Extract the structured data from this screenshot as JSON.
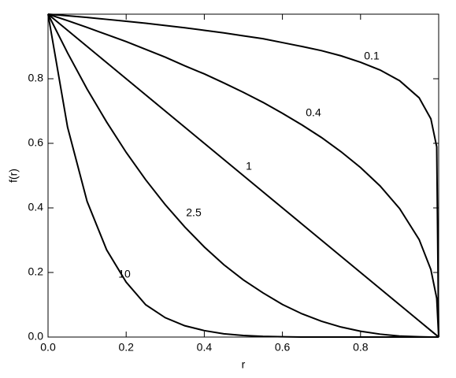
{
  "chart_data": {
    "type": "line",
    "x_label": "r",
    "y_label": "f(r)",
    "x": [
      0,
      0.05,
      0.1,
      0.15,
      0.2,
      0.25,
      0.3,
      0.35,
      0.4,
      0.45,
      0.5,
      0.55,
      0.6,
      0.65,
      0.7,
      0.75,
      0.8,
      0.85,
      0.9,
      0.95,
      0.98,
      0.995,
      1
    ],
    "series": [
      {
        "name": "0.1",
        "color": "#000000",
        "values": [
          1,
          0.995,
          0.99,
          0.984,
          0.978,
          0.972,
          0.965,
          0.958,
          0.95,
          0.942,
          0.933,
          0.924,
          0.912,
          0.9,
          0.887,
          0.871,
          0.851,
          0.827,
          0.794,
          0.741,
          0.676,
          0.589,
          0
        ]
      },
      {
        "name": "0.4",
        "color": "#000000",
        "values": [
          1,
          0.98,
          0.959,
          0.937,
          0.915,
          0.891,
          0.867,
          0.84,
          0.815,
          0.787,
          0.758,
          0.727,
          0.693,
          0.657,
          0.618,
          0.574,
          0.525,
          0.468,
          0.398,
          0.302,
          0.209,
          0.12,
          0
        ]
      },
      {
        "name": "1",
        "color": "#000000",
        "values": [
          1,
          0.95,
          0.9,
          0.85,
          0.8,
          0.75,
          0.7,
          0.65,
          0.6,
          0.55,
          0.5,
          0.45,
          0.4,
          0.35,
          0.3,
          0.25,
          0.2,
          0.15,
          0.1,
          0.05,
          0.02,
          0.005,
          0
        ]
      },
      {
        "name": "2.5",
        "color": "#000000",
        "values": [
          1,
          0.88,
          0.768,
          0.666,
          0.572,
          0.487,
          0.41,
          0.341,
          0.279,
          0.224,
          0.177,
          0.137,
          0.101,
          0.072,
          0.049,
          0.031,
          0.018,
          0.009,
          0.003,
          0.001,
          0,
          0,
          0
        ]
      },
      {
        "name": "10",
        "color": "#000000",
        "values": [
          1,
          0.65,
          0.42,
          0.27,
          0.17,
          0.1,
          0.06,
          0.035,
          0.02,
          0.01,
          0.005,
          0.002,
          0.001,
          0,
          0,
          0,
          0,
          0,
          0,
          0,
          0,
          0,
          0
        ]
      }
    ],
    "xlim": [
      0,
      1
    ],
    "ylim": [
      0,
      1
    ],
    "xticks": [
      {
        "value": 0,
        "label": "0.0"
      },
      {
        "value": 0.2,
        "label": "0.2"
      },
      {
        "value": 0.4,
        "label": "0.4"
      },
      {
        "value": 0.6,
        "label": "0.6"
      },
      {
        "value": 0.8,
        "label": "0.8"
      }
    ],
    "yticks": [
      {
        "value": 0,
        "label": "0.0"
      },
      {
        "value": 0.2,
        "label": "0.2"
      },
      {
        "value": 0.4,
        "label": "0.4"
      },
      {
        "value": 0.6,
        "label": "0.6"
      },
      {
        "value": 0.8,
        "label": "0.8"
      }
    ],
    "grid": false
  }
}
